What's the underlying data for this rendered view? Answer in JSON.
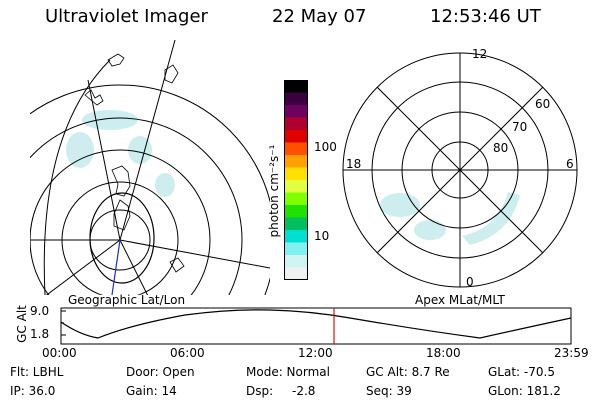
{
  "header": {
    "instrument": "Ultraviolet Imager",
    "date": "22 May 07",
    "time": "12:53:46 UT"
  },
  "panels": {
    "geographic_label": "Geographic Lat/Lon",
    "apex_label": "Apex MLat/MLT"
  },
  "colorbar": {
    "unit_label": "photon cm⁻²s⁻¹",
    "tick_labels": [
      "100",
      "10"
    ],
    "colors": [
      "#000000",
      "#3a0040",
      "#700060",
      "#b00030",
      "#e00000",
      "#ff5000",
      "#ffa000",
      "#ffe000",
      "#e0ff40",
      "#80ff00",
      "#20e000",
      "#00c060",
      "#00e0d0",
      "#80f0f0",
      "#d0f4f4",
      "#f0f0f0"
    ]
  },
  "polar_grid": {
    "mlt_labels": [
      "12",
      "18",
      "6",
      "0"
    ],
    "lat_labels": [
      "60",
      "70",
      "80"
    ]
  },
  "gc_alt_plot": {
    "ylabel": "GC Alt",
    "y_ticks": [
      "9.0",
      "1.8"
    ],
    "x_ticks": [
      "00:00",
      "06:00",
      "12:00",
      "18:00",
      "23:59"
    ],
    "current_time_marker": "12:53"
  },
  "status": {
    "filter": "Flt: LBHL",
    "ip": "IP: 36.0",
    "door": "Door: Open",
    "gain": "Gain: 14",
    "mode": "Mode: Normal",
    "dsp_label": "Dsp:",
    "dsp_value": "-2.8",
    "gc_alt": "GC Alt: 8.7 Re",
    "seq": "Seq: 39",
    "glat": "GLat: -70.5",
    "glon": "GLon: 181.2"
  }
}
